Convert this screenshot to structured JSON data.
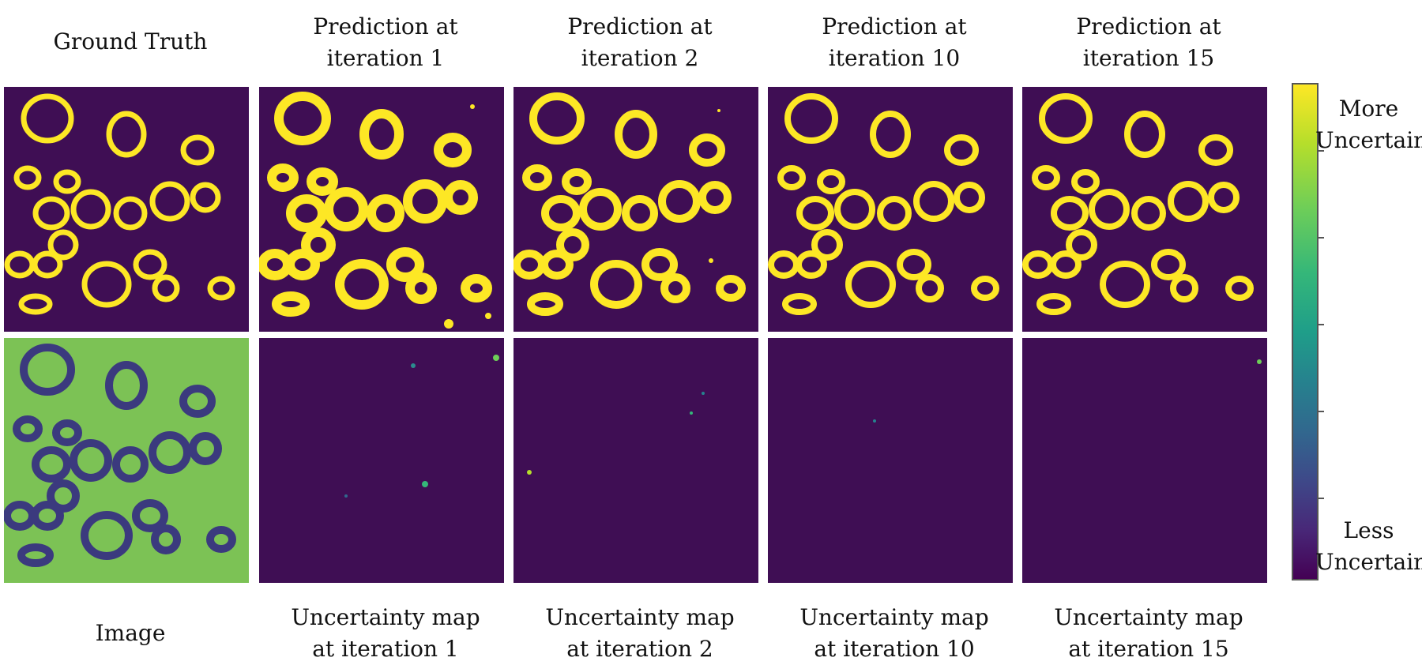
{
  "figure": {
    "top_captions": [
      [
        "Ground Truth"
      ],
      [
        "Prediction at",
        "iteration 1"
      ],
      [
        "Prediction at",
        "iteration 2"
      ],
      [
        "Prediction at",
        "iteration 10"
      ],
      [
        "Prediction at",
        "iteration 15"
      ]
    ],
    "bottom_captions": [
      [
        "Image"
      ],
      [
        "Uncertainty map",
        "at iteration 1"
      ],
      [
        "Uncertainty map",
        "at iteration 2"
      ],
      [
        "Uncertainty map",
        "at iteration 10"
      ],
      [
        "Uncertainty map",
        "at iteration 15"
      ]
    ],
    "colorbar": {
      "top_label": [
        "More",
        "Uncertain"
      ],
      "bottom_label": [
        "Less",
        "Uncertain"
      ],
      "colormap": "viridis"
    },
    "colors": {
      "background": "#3f0e54",
      "ring": "#fde725",
      "image_bg": "#8ccc4a",
      "image_ring": "#3b3a7e"
    }
  }
}
